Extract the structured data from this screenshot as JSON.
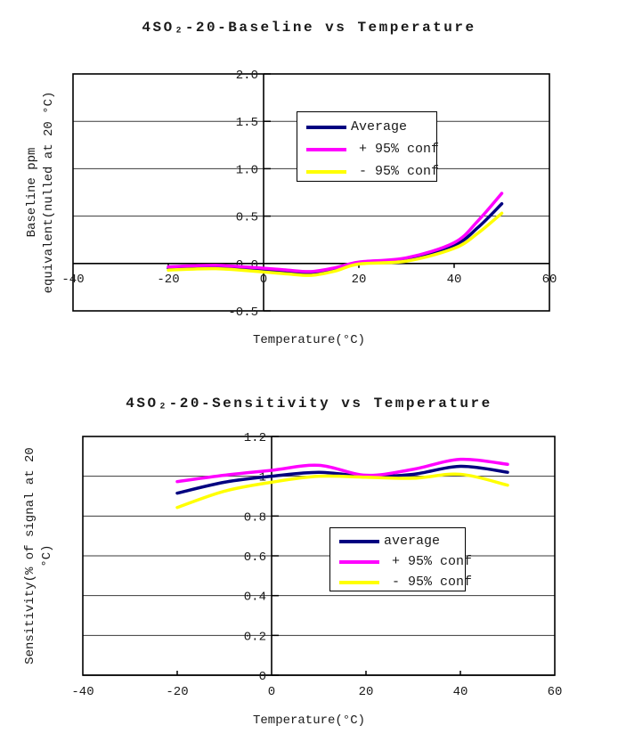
{
  "figure": {
    "background": "#ffffff",
    "text_color": "#1a1a1a",
    "grid_color": "#3a3a3a",
    "axis_color": "#000000"
  },
  "chart_data": [
    {
      "type": "line",
      "title": "4SO₂-20-Baseline vs Temperature",
      "xlabel": "Temperature(°C)",
      "ylabel": "Baseline ppm equivalent(nulled at 20 °C)",
      "ylabel_lines": [
        "Baseline ppm",
        "equivalent(nulled at 20 °C)"
      ],
      "xlim": [
        -40,
        60
      ],
      "ylim": [
        -0.5,
        2
      ],
      "xticks": [
        -40,
        -20,
        0,
        20,
        40,
        60
      ],
      "xtick_labels": [
        "-40",
        "-20",
        "0",
        "20",
        "40",
        "60"
      ],
      "yticks": [
        2,
        1.5,
        1,
        0.5,
        0,
        -0.5
      ],
      "ytick_labels": [
        "2.0",
        "1.5",
        "1.0",
        "0.5",
        "0.0",
        "-0.5"
      ],
      "grid": "horizontal",
      "legend_position": "inside-top-center",
      "x": [
        -20,
        -10,
        0,
        5,
        10,
        15,
        20,
        30,
        40,
        45,
        50
      ],
      "series": [
        {
          "name": "Average",
          "color": "#000080",
          "values": [
            -0.05,
            -0.035,
            -0.065,
            -0.085,
            -0.1,
            -0.06,
            0.005,
            0.04,
            0.19,
            0.38,
            0.63
          ]
        },
        {
          "name": "+ 95% conf",
          "color": "#ff00ff",
          "values": [
            -0.035,
            -0.02,
            -0.05,
            -0.07,
            -0.085,
            -0.045,
            0.015,
            0.06,
            0.22,
            0.45,
            0.74
          ]
        },
        {
          "name": "- 95% conf",
          "color": "#ffff00",
          "values": [
            -0.07,
            -0.055,
            -0.09,
            -0.11,
            -0.125,
            -0.08,
            -0.005,
            0.025,
            0.16,
            0.32,
            0.53
          ]
        }
      ]
    },
    {
      "type": "line",
      "title": "4SO₂-20-Sensitivity vs Temperature",
      "xlabel": "Temperature(°C)",
      "ylabel": "Sensitivity(% of signal at 20 °C)",
      "ylabel_lines": [
        "Sensitivity(% of signal at 20",
        "°C)"
      ],
      "xlim": [
        -40,
        60
      ],
      "ylim": [
        0,
        1.2
      ],
      "xticks": [
        -40,
        -20,
        0,
        20,
        40,
        60
      ],
      "xtick_labels": [
        "-40",
        "-20",
        "0",
        "20",
        "40",
        "60"
      ],
      "yticks": [
        1.2,
        1,
        0.8,
        0.6,
        0.4,
        0.2,
        0
      ],
      "ytick_labels": [
        "1.2",
        "1",
        "0.8",
        "0.6",
        "0.4",
        "0.2",
        "0"
      ],
      "grid": "horizontal",
      "legend_position": "inside-bottom-center",
      "x": [
        -20,
        -10,
        0,
        10,
        20,
        30,
        40,
        50
      ],
      "series": [
        {
          "name": "average",
          "color": "#000080",
          "values": [
            0.915,
            0.97,
            1.0,
            1.02,
            1.0,
            1.01,
            1.05,
            1.02
          ]
        },
        {
          "name": "+ 95% conf",
          "color": "#ff00ff",
          "values": [
            0.973,
            1.005,
            1.03,
            1.055,
            1.005,
            1.035,
            1.085,
            1.06
          ]
        },
        {
          "name": "- 95% conf",
          "color": "#ffff00",
          "values": [
            0.843,
            0.925,
            0.97,
            1.0,
            0.995,
            0.99,
            1.01,
            0.955
          ]
        }
      ]
    }
  ]
}
